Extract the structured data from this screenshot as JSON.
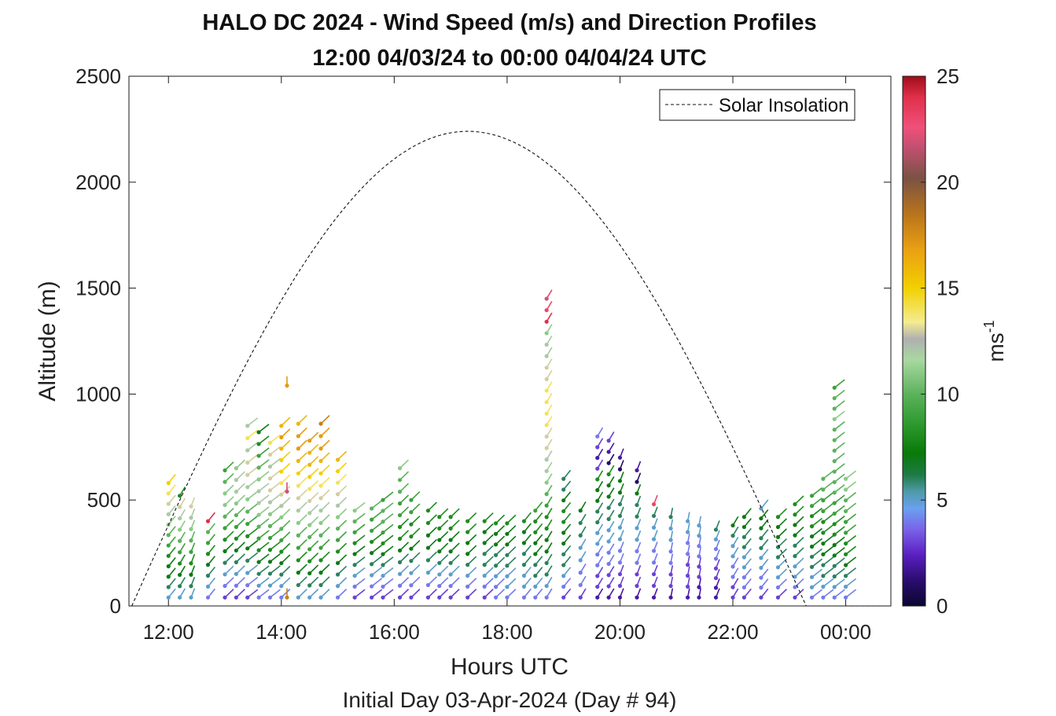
{
  "chart_data": {
    "type": "scatter",
    "title_line1": "HALO DC 2024 - Wind Speed (m/s) and Direction Profiles",
    "title_line2": "12:00 04/03/24 to 00:00 04/04/24  UTC",
    "xlabel": "Hours UTC",
    "xlabel2": "Initial Day 03-Apr-2024 (Day # 94)",
    "ylabel": "Altitude (m)",
    "xlim": [
      11.3,
      24.8
    ],
    "ylim": [
      0,
      2500
    ],
    "x_ticks": [
      12,
      14,
      16,
      18,
      20,
      22,
      24
    ],
    "x_tick_labels": [
      "12:00",
      "14:00",
      "16:00",
      "18:00",
      "20:00",
      "22:00",
      "00:00"
    ],
    "y_ticks": [
      0,
      500,
      1000,
      1500,
      2000,
      2500
    ],
    "y_tick_labels": [
      "0",
      "500",
      "1000",
      "1500",
      "2000",
      "2500"
    ],
    "colorbar": {
      "label_base": "ms",
      "label_exp": "-1",
      "range": [
        0,
        25
      ],
      "ticks": [
        0,
        5,
        10,
        15,
        20,
        25
      ],
      "tick_labels": [
        "0",
        "5",
        "10",
        "15",
        "20",
        "25"
      ],
      "colors": [
        {
          "v": 0,
          "c": "#0b0630"
        },
        {
          "v": 1.2,
          "c": "#2a0d6e"
        },
        {
          "v": 2.4,
          "c": "#5a1fc0"
        },
        {
          "v": 3.6,
          "c": "#7a62e8"
        },
        {
          "v": 4.6,
          "c": "#6aa0f0"
        },
        {
          "v": 5.4,
          "c": "#4e9aa8"
        },
        {
          "v": 6.2,
          "c": "#1e7a45"
        },
        {
          "v": 7.2,
          "c": "#087a08"
        },
        {
          "v": 8.6,
          "c": "#2e9a2e"
        },
        {
          "v": 10.0,
          "c": "#5cb25c"
        },
        {
          "v": 11.6,
          "c": "#a8d8a0"
        },
        {
          "v": 12.6,
          "c": "#b0b0b0"
        },
        {
          "v": 13.4,
          "c": "#f4ec90"
        },
        {
          "v": 15.0,
          "c": "#f2d000"
        },
        {
          "v": 16.8,
          "c": "#eaa012"
        },
        {
          "v": 18.5,
          "c": "#b8741c"
        },
        {
          "v": 20.2,
          "c": "#7a5244"
        },
        {
          "v": 21.6,
          "c": "#c05070"
        },
        {
          "v": 22.6,
          "c": "#f0507a"
        },
        {
          "v": 24.0,
          "c": "#e0304a"
        },
        {
          "v": 25.0,
          "c": "#a00c1a"
        }
      ]
    },
    "legend": {
      "label": "Solar Insolation",
      "position": "top-right"
    },
    "solar_insolation_curve": {
      "peak_hour": 17.3,
      "peak_altitude": 2240,
      "start_hour": 11.35,
      "end_hour": 23.3,
      "night_level_start": 23.3,
      "night_level_end": 24.7,
      "night_level_altitude": 0
    },
    "wind_profiles": [
      {
        "t": 12.0,
        "top": 580,
        "spd": [
          5,
          6,
          7,
          7,
          8,
          9,
          10,
          11,
          12,
          13,
          14,
          15
        ],
        "dir": 250
      },
      {
        "t": 12.2,
        "top": 520,
        "spd": [
          5,
          6,
          7,
          8,
          9,
          10,
          11,
          12,
          13,
          8
        ],
        "dir": 255
      },
      {
        "t": 12.4,
        "top": 470,
        "spd": [
          5,
          6,
          7,
          8,
          9,
          10,
          11,
          12,
          13
        ],
        "dir": 260
      },
      {
        "t": 12.7,
        "top": 400,
        "spd": [
          4,
          5,
          6,
          7,
          8,
          9,
          10,
          24
        ],
        "dir": 250
      },
      {
        "t": 13.0,
        "top": 640,
        "spd": [
          3,
          4,
          5,
          6,
          7,
          8,
          9,
          10,
          11,
          11,
          10,
          9
        ],
        "dir": 245
      },
      {
        "t": 13.2,
        "top": 650,
        "spd": [
          3,
          4,
          5,
          6,
          7,
          8,
          9,
          10,
          11,
          12,
          12,
          11
        ],
        "dir": 245
      },
      {
        "t": 13.4,
        "top": 850,
        "spd": [
          3,
          4,
          5,
          6,
          7,
          8,
          9,
          10,
          11,
          12,
          13,
          13,
          12,
          14,
          12
        ],
        "dir": 240
      },
      {
        "t": 13.6,
        "top": 820,
        "spd": [
          4,
          5,
          6,
          7,
          8,
          9,
          10,
          11,
          12,
          12,
          11,
          10,
          9,
          8,
          7
        ],
        "dir": 240
      },
      {
        "t": 13.8,
        "top": 770,
        "spd": [
          4,
          5,
          6,
          7,
          8,
          9,
          10,
          11,
          12,
          13,
          13,
          12,
          13,
          14
        ],
        "dir": 240
      },
      {
        "t": 14.0,
        "top": 850,
        "spd": [
          4,
          5,
          6,
          7,
          8,
          9,
          10,
          11,
          12,
          13,
          14,
          15,
          15,
          16,
          17,
          16
        ],
        "dir": 245
      },
      {
        "t": 14.1,
        "top": 1040,
        "spd": [
          18,
          22,
          17
        ],
        "dir": 270
      },
      {
        "t": 14.3,
        "top": 860,
        "spd": [
          5,
          6,
          7,
          8,
          9,
          10,
          11,
          12,
          13,
          14,
          15,
          16,
          17,
          17,
          16
        ],
        "dir": 245
      },
      {
        "t": 14.5,
        "top": 780,
        "spd": [
          5,
          6,
          7,
          8,
          9,
          10,
          11,
          12,
          13,
          14,
          15,
          16,
          16,
          17
        ],
        "dir": 245
      },
      {
        "t": 14.7,
        "top": 860,
        "spd": [
          5,
          6,
          7,
          8,
          9,
          10,
          11,
          12,
          13,
          14,
          15,
          16,
          17,
          17,
          18
        ],
        "dir": 245
      },
      {
        "t": 15.0,
        "top": 690,
        "spd": [
          4,
          5,
          6,
          7,
          8,
          9,
          10,
          11,
          12,
          13,
          14,
          15,
          16
        ],
        "dir": 245
      },
      {
        "t": 15.3,
        "top": 450,
        "spd": [
          3,
          4,
          5,
          6,
          7,
          8,
          9,
          10,
          11
        ],
        "dir": 240
      },
      {
        "t": 15.6,
        "top": 460,
        "spd": [
          3,
          4,
          5,
          6,
          7,
          8,
          9,
          9,
          10
        ],
        "dir": 240
      },
      {
        "t": 15.8,
        "top": 500,
        "spd": [
          3,
          4,
          5,
          6,
          7,
          8,
          9,
          10,
          10,
          9
        ],
        "dir": 240
      },
      {
        "t": 16.1,
        "top": 650,
        "spd": [
          3,
          4,
          5,
          6,
          7,
          8,
          8,
          9,
          9,
          10,
          10,
          11
        ],
        "dir": 245
      },
      {
        "t": 16.3,
        "top": 500,
        "spd": [
          3,
          4,
          5,
          6,
          7,
          8,
          8,
          9,
          9
        ],
        "dir": 245
      },
      {
        "t": 16.6,
        "top": 450,
        "spd": [
          3,
          4,
          5,
          6,
          7,
          7,
          8,
          8
        ],
        "dir": 245
      },
      {
        "t": 16.8,
        "top": 420,
        "spd": [
          3,
          4,
          5,
          6,
          7,
          7,
          8,
          8
        ],
        "dir": 245
      },
      {
        "t": 17.0,
        "top": 420,
        "spd": [
          3,
          4,
          5,
          6,
          7,
          7,
          8,
          8
        ],
        "dir": 245
      },
      {
        "t": 17.3,
        "top": 400,
        "spd": [
          3,
          4,
          5,
          6,
          7,
          7,
          8,
          8
        ],
        "dir": 245
      },
      {
        "t": 17.6,
        "top": 400,
        "spd": [
          3,
          4,
          5,
          6,
          6,
          7,
          7,
          8
        ],
        "dir": 245
      },
      {
        "t": 17.8,
        "top": 390,
        "spd": [
          4,
          4,
          5,
          6,
          6,
          7,
          7,
          8
        ],
        "dir": 245
      },
      {
        "t": 18.0,
        "top": 390,
        "spd": [
          4,
          5,
          5,
          6,
          6,
          7,
          7,
          8
        ],
        "dir": 245
      },
      {
        "t": 18.3,
        "top": 400,
        "spd": [
          4,
          5,
          5,
          6,
          6,
          7,
          7,
          8
        ],
        "dir": 250
      },
      {
        "t": 18.5,
        "top": 450,
        "spd": [
          4,
          5,
          6,
          6,
          7,
          7,
          8,
          8,
          9
        ],
        "dir": 250
      },
      {
        "t": 18.7,
        "top": 1450,
        "spd": [
          4,
          5,
          6,
          6,
          7,
          7,
          8,
          8,
          9,
          10,
          11,
          12,
          12,
          13,
          13,
          14,
          14,
          14,
          14,
          13,
          13,
          12,
          12,
          11,
          24,
          23,
          22
        ],
        "dir": 255
      },
      {
        "t": 19.0,
        "top": 600,
        "spd": [
          3,
          4,
          5,
          6,
          6,
          7,
          7,
          8,
          8,
          7,
          6,
          6
        ],
        "dir": 250
      },
      {
        "t": 19.3,
        "top": 450,
        "spd": [
          3,
          4,
          4,
          5,
          5,
          6,
          6,
          7
        ],
        "dir": 255
      },
      {
        "t": 19.6,
        "top": 800,
        "spd": [
          2,
          3,
          3,
          4,
          4,
          5,
          5,
          6,
          6,
          7,
          7,
          8,
          3,
          2,
          3,
          4
        ],
        "dir": 255
      },
      {
        "t": 19.8,
        "top": 780,
        "spd": [
          2,
          3,
          3,
          4,
          4,
          5,
          5,
          6,
          6,
          7,
          7,
          8,
          1,
          2,
          3
        ],
        "dir": 255
      },
      {
        "t": 20.0,
        "top": 700,
        "spd": [
          2,
          3,
          3,
          4,
          4,
          5,
          5,
          6,
          6,
          7,
          7,
          1,
          2
        ],
        "dir": 260
      },
      {
        "t": 20.3,
        "top": 640,
        "spd": [
          2,
          3,
          3,
          4,
          4,
          5,
          5,
          6,
          6,
          7,
          1,
          2
        ],
        "dir": 260
      },
      {
        "t": 20.6,
        "top": 480,
        "spd": [
          2,
          3,
          3,
          4,
          4,
          5,
          5,
          6,
          23
        ],
        "dir": 260
      },
      {
        "t": 20.9,
        "top": 420,
        "spd": [
          2,
          3,
          3,
          4,
          4,
          5,
          5,
          6
        ],
        "dir": 265
      },
      {
        "t": 21.2,
        "top": 400,
        "spd": [
          2,
          3,
          3,
          3,
          4,
          4,
          5,
          5
        ],
        "dir": 265
      },
      {
        "t": 21.4,
        "top": 380,
        "spd": [
          2,
          2,
          3,
          3,
          4,
          4,
          5,
          5
        ],
        "dir": 265
      },
      {
        "t": 21.7,
        "top": 360,
        "spd": [
          2,
          2,
          3,
          3,
          4,
          4,
          5,
          6
        ],
        "dir": 260
      },
      {
        "t": 22.0,
        "top": 380,
        "spd": [
          3,
          3,
          4,
          4,
          5,
          5,
          6,
          7
        ],
        "dir": 255
      },
      {
        "t": 22.2,
        "top": 420,
        "spd": [
          3,
          4,
          4,
          5,
          5,
          6,
          6,
          7,
          7
        ],
        "dir": 250
      },
      {
        "t": 22.5,
        "top": 460,
        "spd": [
          3,
          4,
          4,
          5,
          5,
          6,
          6,
          7,
          7,
          5
        ],
        "dir": 250
      },
      {
        "t": 22.8,
        "top": 420,
        "spd": [
          3,
          4,
          5,
          5,
          6,
          6,
          7,
          7,
          8
        ],
        "dir": 245
      },
      {
        "t": 23.1,
        "top": 480,
        "spd": [
          3,
          4,
          5,
          5,
          6,
          6,
          7,
          7,
          8,
          8
        ],
        "dir": 245
      },
      {
        "t": 23.4,
        "top": 520,
        "spd": [
          4,
          5,
          5,
          6,
          6,
          7,
          7,
          8,
          8,
          9,
          9
        ],
        "dir": 240
      },
      {
        "t": 23.6,
        "top": 600,
        "spd": [
          4,
          5,
          6,
          6,
          7,
          7,
          8,
          8,
          9,
          9,
          10,
          10
        ],
        "dir": 240
      },
      {
        "t": 23.8,
        "top": 1030,
        "spd": [
          4,
          5,
          6,
          6,
          7,
          7,
          8,
          8,
          9,
          9,
          10,
          10,
          10,
          10,
          10,
          10,
          10,
          11,
          10,
          10,
          9
        ],
        "dir": 240
      },
      {
        "t": 24.0,
        "top": 600,
        "spd": [
          4,
          5,
          6,
          7,
          8,
          8,
          9,
          9,
          10,
          10,
          11,
          11
        ],
        "dir": 240
      }
    ]
  }
}
